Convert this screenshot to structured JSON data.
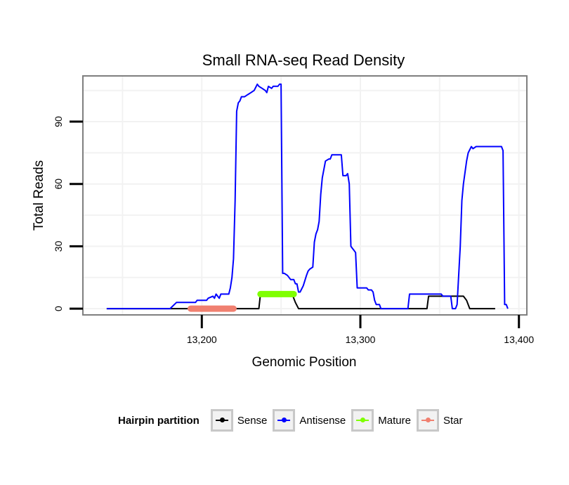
{
  "chart_data": {
    "type": "line",
    "title": "Small RNA-seq Read Density",
    "xlabel": "Genomic Position",
    "ylabel": "Total Reads",
    "xlim": [
      13125,
      13405
    ],
    "ylim": [
      -3,
      112
    ],
    "x_ticks": [
      13200,
      13300,
      13400
    ],
    "x_tick_labels": [
      "13,200",
      "13,300",
      "13,400"
    ],
    "y_ticks": [
      0,
      30,
      60,
      90
    ],
    "y_tick_labels": [
      "0",
      "30",
      "60",
      "90"
    ],
    "grid": true,
    "legend": {
      "title": "Hairpin partition",
      "position": "bottom",
      "entries": [
        {
          "label": "Sense",
          "color": "#000000"
        },
        {
          "label": "Antisense",
          "color": "#0000ff"
        },
        {
          "label": "Mature",
          "color": "#7fff00"
        },
        {
          "label": "Star",
          "color": "#f08070"
        }
      ]
    },
    "series": [
      {
        "name": "Sense",
        "color": "#000000",
        "points": [
          [
            13140,
            0
          ],
          [
            13236,
            0
          ],
          [
            13237,
            7
          ],
          [
            13257,
            7
          ],
          [
            13259,
            3
          ],
          [
            13261,
            0
          ],
          [
            13342,
            0
          ],
          [
            13343,
            6
          ],
          [
            13360,
            6
          ],
          [
            13365,
            6
          ],
          [
            13367,
            4
          ],
          [
            13369,
            0
          ],
          [
            13385,
            0
          ]
        ]
      },
      {
        "name": "Antisense",
        "color": "#0000ff",
        "points": [
          [
            13140,
            0
          ],
          [
            13180,
            0
          ],
          [
            13184,
            3
          ],
          [
            13196,
            3
          ],
          [
            13197,
            4
          ],
          [
            13203,
            4
          ],
          [
            13204,
            5
          ],
          [
            13207,
            6
          ],
          [
            13208,
            5
          ],
          [
            13209,
            7
          ],
          [
            13211,
            5
          ],
          [
            13212,
            7
          ],
          [
            13217,
            7
          ],
          [
            13218,
            10
          ],
          [
            13219,
            15
          ],
          [
            13220,
            24
          ],
          [
            13221,
            52
          ],
          [
            13222,
            95
          ],
          [
            13223,
            99
          ],
          [
            13224,
            100
          ],
          [
            13225,
            102
          ],
          [
            13227,
            102
          ],
          [
            13229,
            103
          ],
          [
            13231,
            104
          ],
          [
            13233,
            105
          ],
          [
            13235,
            108
          ],
          [
            13236,
            107
          ],
          [
            13238,
            106
          ],
          [
            13240,
            105
          ],
          [
            13241,
            104
          ],
          [
            13242,
            107
          ],
          [
            13244,
            106
          ],
          [
            13245,
            107
          ],
          [
            13248,
            107
          ],
          [
            13249,
            108
          ],
          [
            13250,
            108
          ],
          [
            13251,
            17
          ],
          [
            13252,
            17
          ],
          [
            13254,
            16
          ],
          [
            13256,
            14
          ],
          [
            13258,
            14
          ],
          [
            13259,
            12
          ],
          [
            13260,
            12
          ],
          [
            13261,
            8
          ],
          [
            13262,
            8
          ],
          [
            13264,
            11
          ],
          [
            13266,
            16
          ],
          [
            13267,
            18
          ],
          [
            13268,
            19
          ],
          [
            13270,
            20
          ],
          [
            13271,
            32
          ],
          [
            13272,
            36
          ],
          [
            13273,
            38
          ],
          [
            13274,
            42
          ],
          [
            13275,
            55
          ],
          [
            13276,
            63
          ],
          [
            13278,
            71
          ],
          [
            13280,
            72
          ],
          [
            13281,
            72
          ],
          [
            13282,
            74
          ],
          [
            13285,
            74
          ],
          [
            13288,
            74
          ],
          [
            13289,
            64
          ],
          [
            13291,
            64
          ],
          [
            13292,
            65
          ],
          [
            13293,
            60
          ],
          [
            13294,
            30
          ],
          [
            13295,
            29
          ],
          [
            13296,
            28
          ],
          [
            13297,
            27
          ],
          [
            13298,
            10
          ],
          [
            13304,
            10
          ],
          [
            13305,
            9
          ],
          [
            13307,
            9
          ],
          [
            13308,
            8
          ],
          [
            13309,
            4
          ],
          [
            13310,
            2
          ],
          [
            13312,
            2
          ],
          [
            13313,
            0
          ],
          [
            13330,
            0
          ],
          [
            13331,
            7
          ],
          [
            13351,
            7
          ],
          [
            13352,
            6
          ],
          [
            13357,
            6
          ],
          [
            13358,
            0
          ],
          [
            13360,
            0
          ],
          [
            13361,
            2
          ],
          [
            13363,
            30
          ],
          [
            13364,
            52
          ],
          [
            13365,
            60
          ],
          [
            13367,
            71
          ],
          [
            13368,
            75
          ],
          [
            13370,
            78
          ],
          [
            13371,
            77
          ],
          [
            13373,
            78
          ],
          [
            13374,
            78
          ],
          [
            13389,
            78
          ],
          [
            13390,
            76
          ],
          [
            13391,
            2
          ],
          [
            13392,
            2
          ],
          [
            13393,
            0
          ]
        ]
      },
      {
        "name": "Mature",
        "color": "#7fff00",
        "points": [
          [
            13237,
            7
          ],
          [
            13258,
            7
          ]
        ]
      },
      {
        "name": "Star",
        "color": "#f08070",
        "points": [
          [
            13193,
            0
          ],
          [
            13220,
            0
          ]
        ]
      }
    ]
  }
}
